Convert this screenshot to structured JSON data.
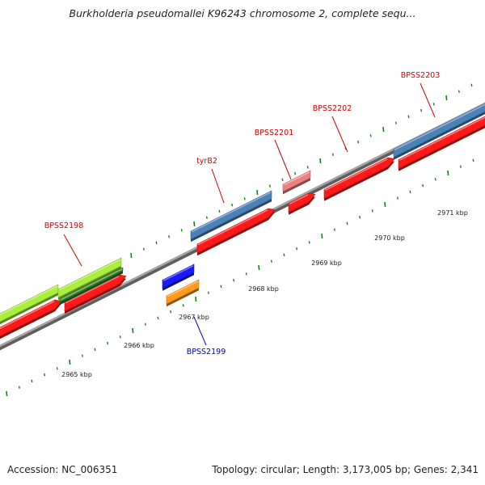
{
  "title": "Burkholderia pseudomallei K96243 chromosome 2, complete sequ...",
  "accession": "Accession: NC_006351",
  "summary": "Topology: circular; Length: 3,173,005 bp; Genes: 2,341",
  "colors": {
    "backbone": "#8c8c8c",
    "tick": "#1f7a1f",
    "label_red": "#d40000",
    "label_blue": "#0000c0",
    "red": "#ff1a1a",
    "pink": "#f08080",
    "steelblue": "#4a82b8",
    "lime": "#a8f03c",
    "darkgreen": "#2e8b2e",
    "blue": "#1a1aff",
    "orange": "#ff9a1a"
  },
  "scale_labels": [
    "2965 kbp",
    "2966 kbp",
    "2967 kbp",
    "2968 kbp",
    "2969 kbp",
    "2970 kbp",
    "2971 kbp"
  ],
  "gene_labels": [
    {
      "name": "BPSS2198",
      "color": "red"
    },
    {
      "name": "BPSS2199",
      "color": "blue"
    },
    {
      "name": "tyrB2",
      "color": "red"
    },
    {
      "name": "BPSS2201",
      "color": "red"
    },
    {
      "name": "BPSS2202",
      "color": "red"
    },
    {
      "name": "BPSS2203",
      "color": "red"
    }
  ]
}
